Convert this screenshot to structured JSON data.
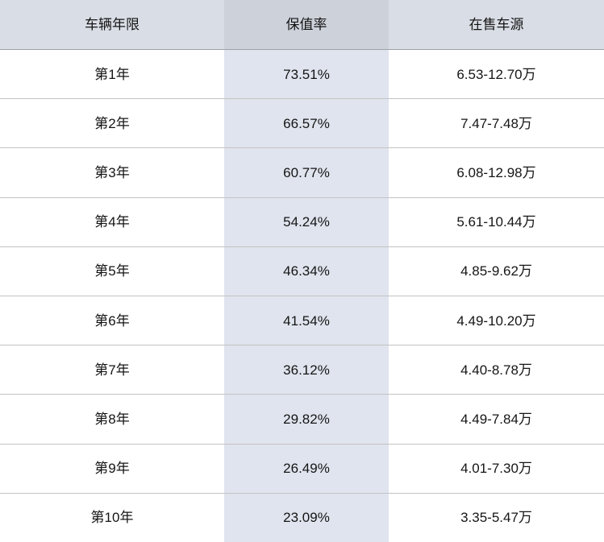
{
  "table": {
    "columns": [
      {
        "label": "车辆年限"
      },
      {
        "label": "保值率"
      },
      {
        "label": "在售车源"
      }
    ],
    "rows": [
      {
        "year": "第1年",
        "rate": "73.51%",
        "listings": "6.53-12.70万"
      },
      {
        "year": "第2年",
        "rate": "66.57%",
        "listings": "7.47-7.48万"
      },
      {
        "year": "第3年",
        "rate": "60.77%",
        "listings": "6.08-12.98万"
      },
      {
        "year": "第4年",
        "rate": "54.24%",
        "listings": "5.61-10.44万"
      },
      {
        "year": "第5年",
        "rate": "46.34%",
        "listings": "4.85-9.62万"
      },
      {
        "year": "第6年",
        "rate": "41.54%",
        "listings": "4.49-10.20万"
      },
      {
        "year": "第7年",
        "rate": "36.12%",
        "listings": "4.40-8.78万"
      },
      {
        "year": "第8年",
        "rate": "29.82%",
        "listings": "4.49-7.84万"
      },
      {
        "year": "第9年",
        "rate": "26.49%",
        "listings": "4.01-7.30万"
      },
      {
        "year": "第10年",
        "rate": "23.09%",
        "listings": "3.35-5.47万"
      }
    ]
  },
  "colors": {
    "header_side_bg": "#d9dde5",
    "header_mid_bg": "#cdd1da",
    "body_mid_bg": "#e0e4ee",
    "row_divider": "#c3c3c3",
    "header_divider": "#9fa4a8",
    "text": "#151515"
  },
  "chart_data": {
    "type": "table",
    "title": "",
    "columns": [
      "车辆年限",
      "保值率",
      "在售车源"
    ],
    "rows": [
      [
        "第1年",
        "73.51%",
        "6.53-12.70万"
      ],
      [
        "第2年",
        "66.57%",
        "7.47-7.48万"
      ],
      [
        "第3年",
        "60.77%",
        "6.08-12.98万"
      ],
      [
        "第4年",
        "54.24%",
        "5.61-10.44万"
      ],
      [
        "第5年",
        "46.34%",
        "4.85-9.62万"
      ],
      [
        "第6年",
        "41.54%",
        "4.49-10.20万"
      ],
      [
        "第7年",
        "36.12%",
        "4.40-8.78万"
      ],
      [
        "第8年",
        "29.82%",
        "4.49-7.84万"
      ],
      [
        "第9年",
        "26.49%",
        "4.01-7.30万"
      ],
      [
        "第10年",
        "23.09%",
        "3.35-5.47万"
      ]
    ],
    "retention_rate_pct_by_year": [
      73.51,
      66.57,
      60.77,
      54.24,
      46.34,
      41.54,
      36.12,
      29.82,
      26.49,
      23.09
    ]
  }
}
